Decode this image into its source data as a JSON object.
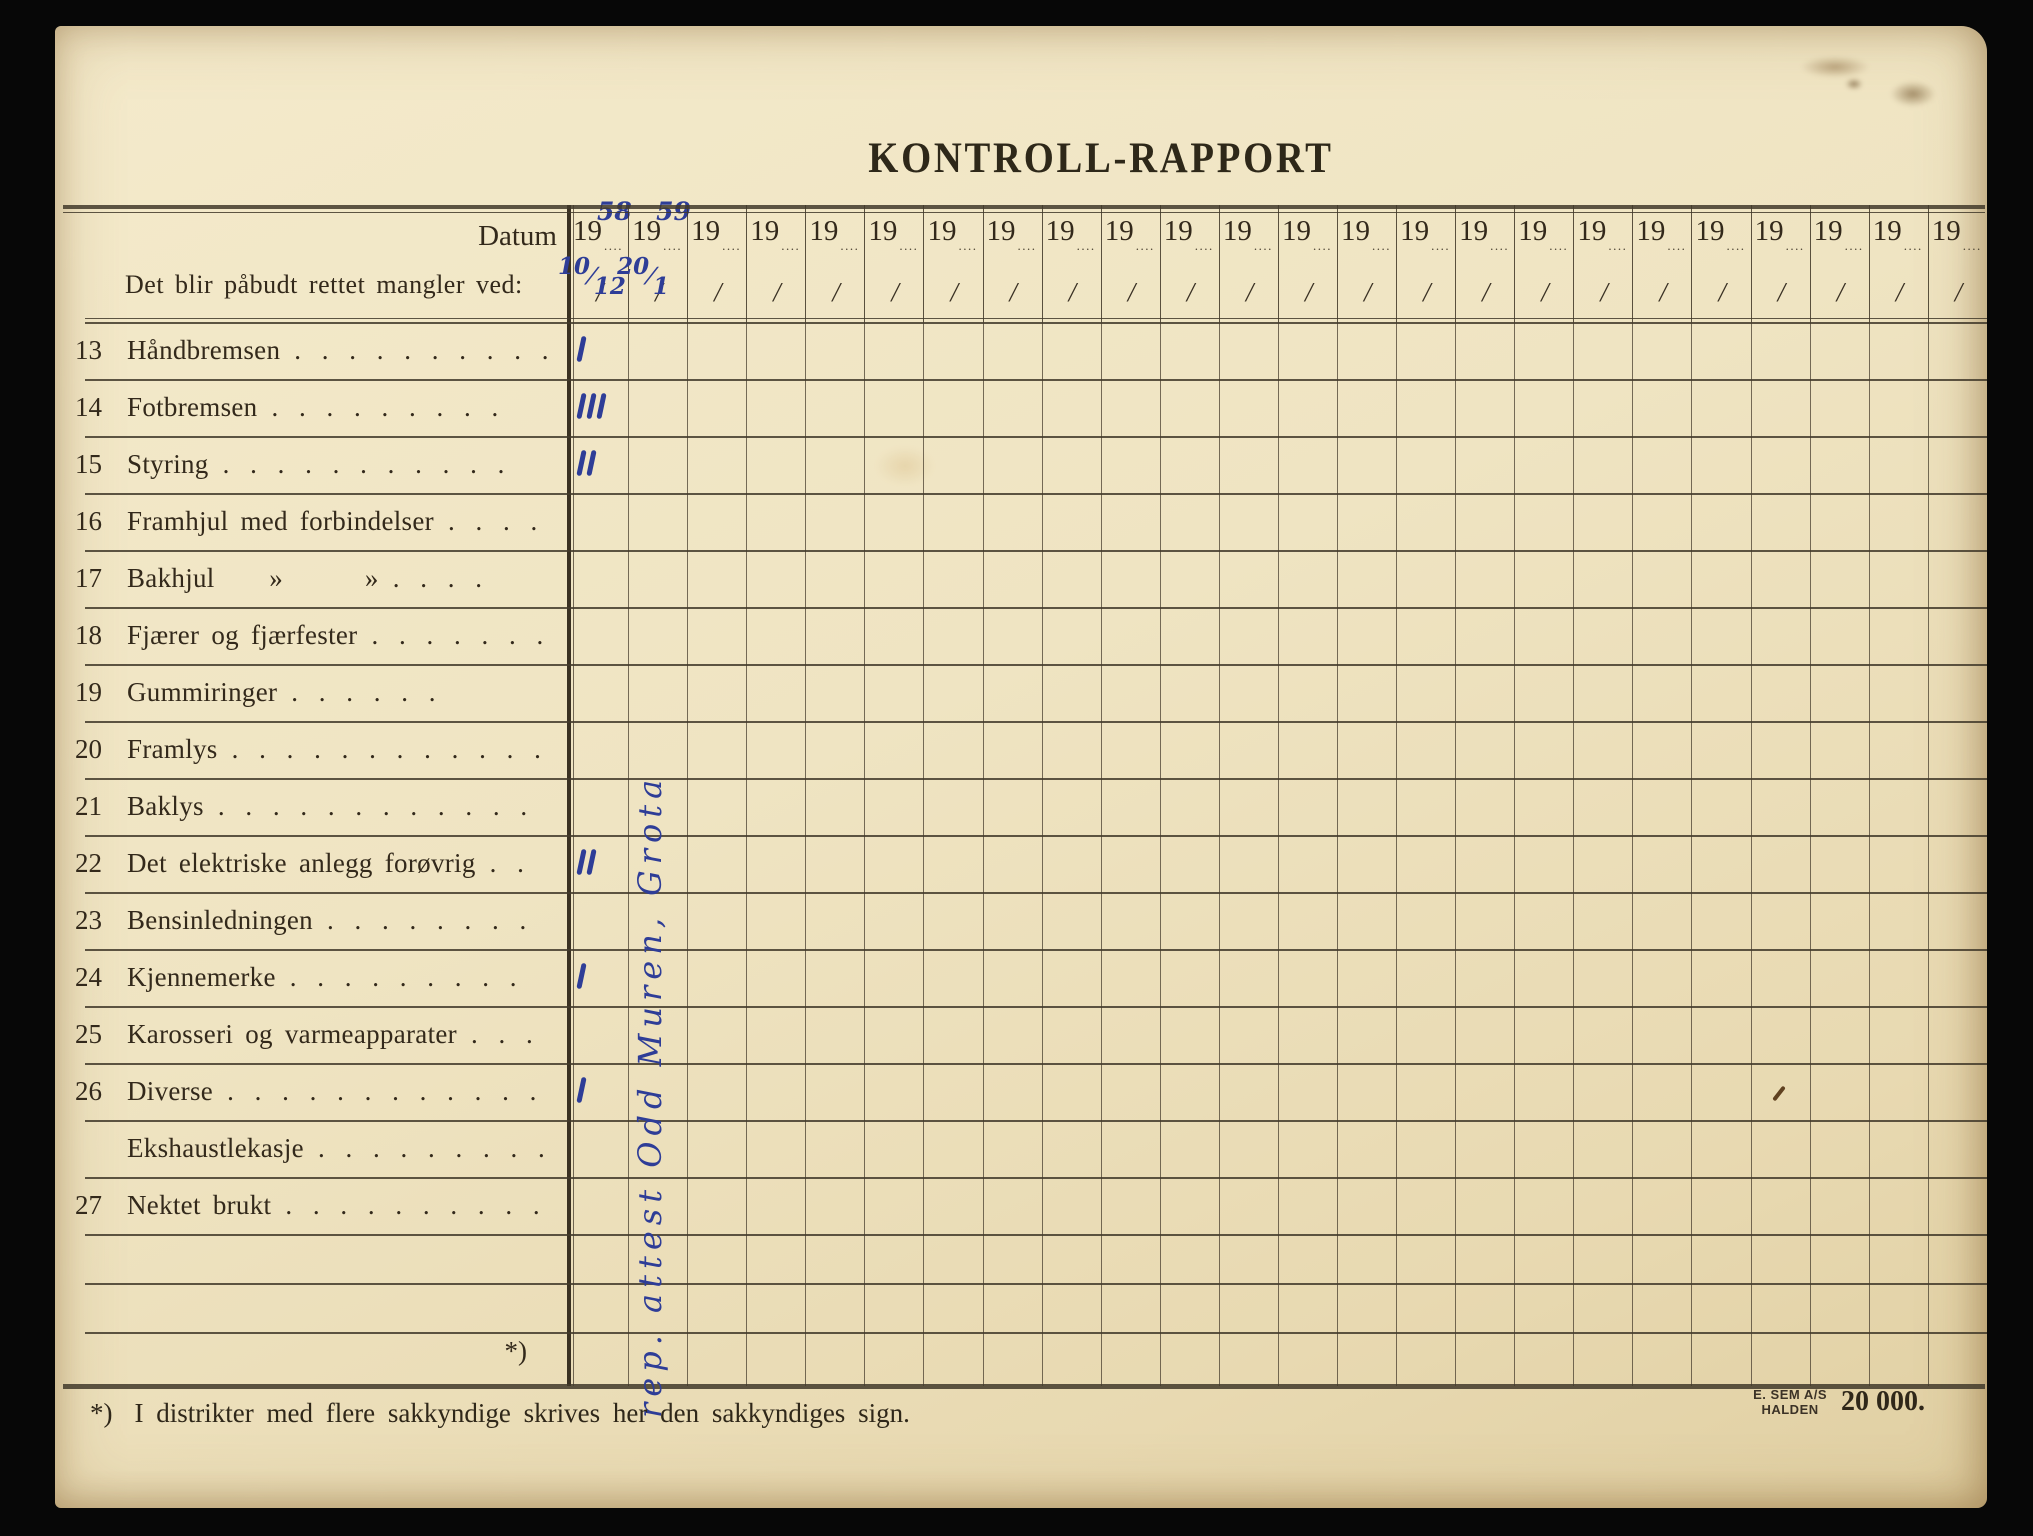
{
  "page": {
    "title": "KONTROLL-RAPPORT"
  },
  "header": {
    "datum_label": "Datum",
    "left_caption": "Det blir påbudt rettet mangler ved:",
    "year_prefix": "19",
    "year_dots": "....",
    "slash_glyph": "/",
    "column_count": 24,
    "handwritten_dates": [
      {
        "col": 0,
        "year": "58",
        "date_top": "10",
        "date_bottom": "12"
      },
      {
        "col": 1,
        "year": "59",
        "date_top": "20",
        "date_bottom": "1"
      }
    ]
  },
  "rows": [
    {
      "num": "13",
      "label": "Håndbremsen",
      "dots": ". . . . . . . . . ."
    },
    {
      "num": "14",
      "label": "Fotbremsen",
      "dots": ". . . . . . . . ."
    },
    {
      "num": "15",
      "label": "Styring",
      "dots": ". . . . . . . . . . ."
    },
    {
      "num": "16",
      "label": "Framhjul med forbindelser",
      "dots": ". . . ."
    },
    {
      "num": "17",
      "label": "Bakhjul  »   »",
      "dots": ". . . ."
    },
    {
      "num": "18",
      "label": "Fjærer og fjærfester",
      "dots": ". . . . . . ."
    },
    {
      "num": "19",
      "label": "Gummiringer",
      "dots": ". . . . . ."
    },
    {
      "num": "20",
      "label": "Framlys",
      "dots": ". . . . . . . . . . . ."
    },
    {
      "num": "21",
      "label": "Baklys",
      "dots": ". . . . . . . . . . . ."
    },
    {
      "num": "22",
      "label": "Det elektriske anlegg forøvrig",
      "dots": ". ."
    },
    {
      "num": "23",
      "label": "Bensinledningen",
      "dots": ". . . . . . . ."
    },
    {
      "num": "24",
      "label": "Kjennemerke",
      "dots": ". . . . . . . . ."
    },
    {
      "num": "25",
      "label": "Karosseri og varmeapparater",
      "dots": ". . ."
    },
    {
      "num": "26",
      "label": "Diverse",
      "dots": ". . . . . . . . . . . ."
    },
    {
      "num": "",
      "label": "Ekshaustlekasje",
      "dots": ". . . . . . . . ."
    },
    {
      "num": "27",
      "label": "Nektet brukt",
      "dots": ". . . . . . . . . ."
    }
  ],
  "blank_row_count": 2,
  "handwriting": {
    "ink_color": "#2e3d97",
    "vertical_note": "rep. attest Odd Muren, Grota",
    "tally_marks": [
      {
        "row_label": "13",
        "col": 0,
        "count": 1
      },
      {
        "row_label": "14",
        "col": 0,
        "count": 3
      },
      {
        "row_label": "15",
        "col": 0,
        "count": 2
      },
      {
        "row_label": "22",
        "col": 0,
        "count": 2
      },
      {
        "row_label": "24",
        "col": 0,
        "count": 1
      },
      {
        "row_label": "26",
        "col": 0,
        "count": 1
      },
      {
        "row_label": "26",
        "col": 20,
        "count": 1,
        "color": "#5f4120",
        "small": true
      }
    ]
  },
  "footnote": {
    "symbol": "*)",
    "text": "I distrikter med flere sakkyndige skrives her den sakkyndiges sign."
  },
  "printer": {
    "line1": "E. SEM A/S",
    "line2": "HALDEN",
    "count": "20 000."
  },
  "colors": {
    "paper": "#efe4c2",
    "line": "#42392a",
    "print_text": "#33291b",
    "ink": "#2e3d97"
  }
}
